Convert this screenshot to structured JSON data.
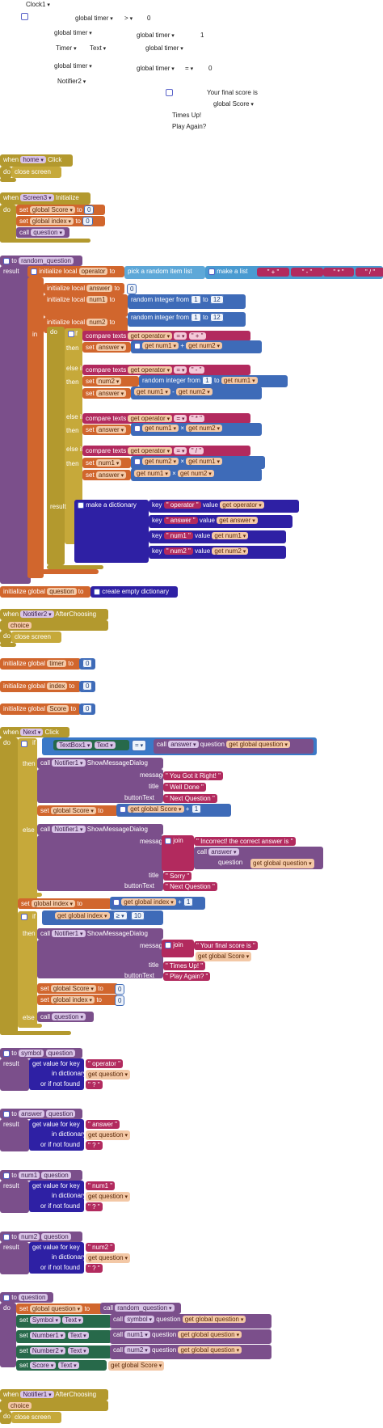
{
  "ghost": {
    "clock1": "Clock1",
    "global_timer_1": "global timer",
    "gt_op": ">",
    "gt_zero": "0",
    "global_timer_2": "global timer",
    "global_timer_3": "global timer",
    "one": "1",
    "timer": "Timer",
    "text": "Text",
    "global_timer_4": "global timer",
    "global_timer_5": "global timer",
    "global_timer_6": "global timer",
    "eq": "=",
    "zero2": "0",
    "notifier2": "Notifier2",
    "final_score": "Your final score is",
    "global_score": "global Score",
    "times_up": "Times Up!",
    "play_again": "Play Again?"
  },
  "when_home": {
    "when": "when",
    "component": "home",
    "event": "Click",
    "do": "do",
    "action": "close screen"
  },
  "when_screen3": {
    "when": "when",
    "component": "Screen3",
    "event": "Initialize",
    "do": "do",
    "set": "set",
    "var1": "global Score",
    "to": "to",
    "val1": "0",
    "var2": "global index",
    "val2": "0",
    "call": "call",
    "proc": "question"
  },
  "random_question": {
    "to": "to",
    "name": "random_question",
    "result": "result",
    "init_operator": "initialize local",
    "operator": "operator",
    "to2": "to",
    "pick": "pick a random item  list",
    "make_list": "make a list",
    "ops": [
      "+",
      "-",
      "*",
      "/"
    ],
    "init_answer": "initialize local",
    "answer": "answer",
    "zero": "0",
    "init_num1": "initialize local",
    "num1": "num1",
    "rand": "random integer from",
    "from1": "1",
    "to_lbl": "to",
    "to12": "12",
    "init_num2": "initialize local",
    "num2": "num2",
    "in": "in",
    "do": "do",
    "if": "if",
    "then": "then",
    "else_if": "else if",
    "compare": "compare texts",
    "get": "get",
    "eq": "=",
    "set": "set",
    "times": "×",
    "minus": "-",
    "plus": "+",
    "result2": "result",
    "make_dict": "make a dictionary",
    "key": "key",
    "value": "value"
  },
  "init_question": {
    "label": "initialize global",
    "name": "question",
    "to": "to",
    "create": "create empty dictionary"
  },
  "when_notifier2": {
    "when": "when",
    "component": "Notifier2",
    "event": "AfterChoosing",
    "param": "choice",
    "do": "do",
    "action": "close screen"
  },
  "init_timer": {
    "label": "initialize global",
    "name": "timer",
    "to": "to",
    "val": "0"
  },
  "init_index": {
    "label": "initialize global",
    "name": "index",
    "to": "to",
    "val": "0"
  },
  "init_score": {
    "label": "initialize global",
    "name": "Score",
    "to": "to",
    "val": "0"
  },
  "when_next": {
    "when": "when",
    "component": "Next",
    "event": "Click",
    "do": "do",
    "if": "if",
    "textbox": "TextBox1",
    "text": "Text",
    "eq": "=",
    "call": "call",
    "answer": "answer",
    "question": "question",
    "get": "get",
    "global_question": "global question",
    "then": "then",
    "notifier1": "Notifier1",
    "show": "ShowMessageDialog",
    "message": "message",
    "title": "title",
    "button_text": "buttonText",
    "got_it": "You Got it Right!",
    "well_done": "Well Done",
    "next_question": "Next Question",
    "set": "set",
    "global_score": "global Score",
    "to": "to",
    "plus": "+",
    "one": "1",
    "else": "else",
    "join": "join",
    "incorrect": "Incorrect! the correct answer is",
    "sorry": "Sorry",
    "global_index": "global index",
    "gte": "≥",
    "ten": "10",
    "final": "Your final score is",
    "times_up": "Times Up!",
    "play_again": "Play Again?",
    "zero": "0",
    "question_proc": "question"
  },
  "getters": [
    {
      "to": "to",
      "name": "symbol",
      "param": "question",
      "result": "result",
      "get_value": "get value for key",
      "key": "operator",
      "in_dict": "in dictionary",
      "get": "get",
      "dict": "question",
      "or_not": "or if not found",
      "default": "?"
    },
    {
      "to": "to",
      "name": "answer",
      "param": "question",
      "result": "result",
      "get_value": "get value for key",
      "key": "answer",
      "in_dict": "in dictionary",
      "get": "get",
      "dict": "question",
      "or_not": "or if not found",
      "default": "?"
    },
    {
      "to": "to",
      "name": "num1",
      "param": "question",
      "result": "result",
      "get_value": "get value for key",
      "key": "num1",
      "in_dict": "in dictionary",
      "get": "get",
      "dict": "question",
      "or_not": "or if not found",
      "default": "?"
    },
    {
      "to": "to",
      "name": "num2",
      "param": "question",
      "result": "result",
      "get_value": "get value for key",
      "key": "num2",
      "in_dict": "in dictionary",
      "get": "get",
      "dict": "question",
      "or_not": "or if not found",
      "default": "?"
    }
  ],
  "question_proc": {
    "to": "to",
    "name": "question",
    "do": "do",
    "set": "set",
    "global_question": "global question",
    "to2": "to",
    "call": "call",
    "random_question": "random_question",
    "rows": [
      {
        "comp": "Symbol",
        "prop": "Text",
        "fn": "symbol",
        "param": "question",
        "arg": "global question"
      },
      {
        "comp": "Number1",
        "prop": "Text",
        "fn": "num1",
        "param": "question",
        "arg": "global question"
      },
      {
        "comp": "Number2",
        "prop": "Text",
        "fn": "num2",
        "param": "question",
        "arg": "global question"
      }
    ],
    "score_comp": "Score",
    "score_prop": "Text",
    "get": "get",
    "global_score": "global Score"
  },
  "when_notifier1": {
    "when": "when",
    "component": "Notifier1",
    "event": "AfterChoosing",
    "param": "choice",
    "do": "do",
    "action": "close screen"
  }
}
